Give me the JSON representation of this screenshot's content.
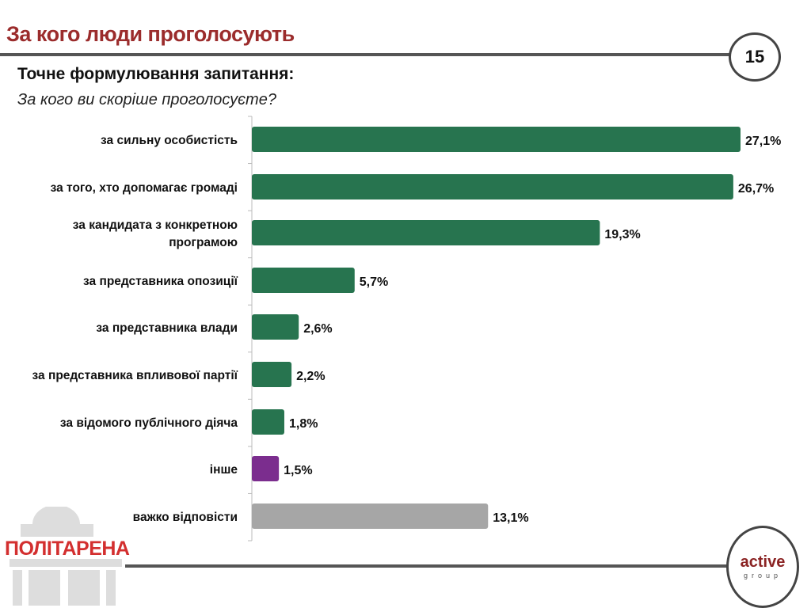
{
  "header": {
    "title": "За кого люди проголосують",
    "page_number": "15"
  },
  "question": {
    "label": "Точне формулювання запитання:",
    "text": "За кого ви скоріше проголосуєте?"
  },
  "chart_data": {
    "type": "bar",
    "orientation": "horizontal",
    "categories": [
      "за сильну особистість",
      "за того, хто допомагає громаді",
      "за кандидата з конкретною програмою",
      "за представника опозиції",
      "за представника влади",
      "за представника впливової партії",
      "за відомого публічного діяча",
      "інше",
      "важко відповісти"
    ],
    "values": [
      27.1,
      26.7,
      19.3,
      5.7,
      2.6,
      2.2,
      1.8,
      1.5,
      13.1
    ],
    "data_labels": [
      "27,1%",
      "26,7%",
      "19,3%",
      "5,7%",
      "2,6%",
      "2,2%",
      "1,8%",
      "1,5%",
      "13,1%"
    ],
    "unit": "%",
    "colors": [
      "#27744f",
      "#27744f",
      "#27744f",
      "#27744f",
      "#27744f",
      "#27744f",
      "#27744f",
      "#7b2d8e",
      "#a6a6a6"
    ],
    "xlim": [
      0,
      27.1
    ],
    "grid": false,
    "legend": "none"
  },
  "footer": {
    "logo_left": "ПОЛІТАРЕНА",
    "logo_right_main": "active",
    "logo_right_sub": "group"
  }
}
